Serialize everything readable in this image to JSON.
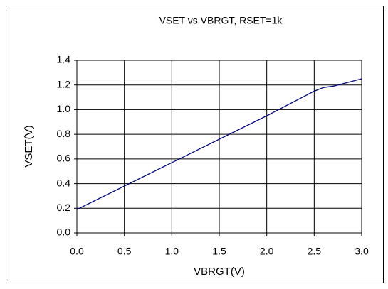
{
  "chart_data": {
    "type": "line",
    "title": "VSET vs VBRGT, RSET=1k",
    "xlabel": "VBRGT(V)",
    "ylabel": "VSET(V)",
    "x": [
      0,
      0.5,
      1.0,
      1.5,
      2.0,
      2.2,
      2.4,
      2.5,
      2.6,
      2.7,
      2.8,
      3.0
    ],
    "series": [
      {
        "name": "VSET",
        "color": "#000080",
        "values": [
          0.19,
          0.38,
          0.57,
          0.76,
          0.95,
          1.03,
          1.11,
          1.15,
          1.18,
          1.19,
          1.21,
          1.25
        ]
      }
    ],
    "xlim": [
      0,
      3
    ],
    "ylim": [
      0,
      1.4
    ],
    "xticks": [
      {
        "value": 0,
        "label": "0.0"
      },
      0.5,
      {
        "value": 1,
        "label": "1.0"
      },
      1.5,
      {
        "value": 2,
        "label": "2.0"
      },
      2.5,
      {
        "value": 3,
        "label": "3.0"
      }
    ],
    "yticks": [
      {
        "value": 0,
        "label": "0.0"
      },
      0.2,
      0.4,
      0.6,
      0.8,
      {
        "value": 1,
        "label": "1.0"
      },
      1.2,
      1.4
    ],
    "grid": true
  }
}
